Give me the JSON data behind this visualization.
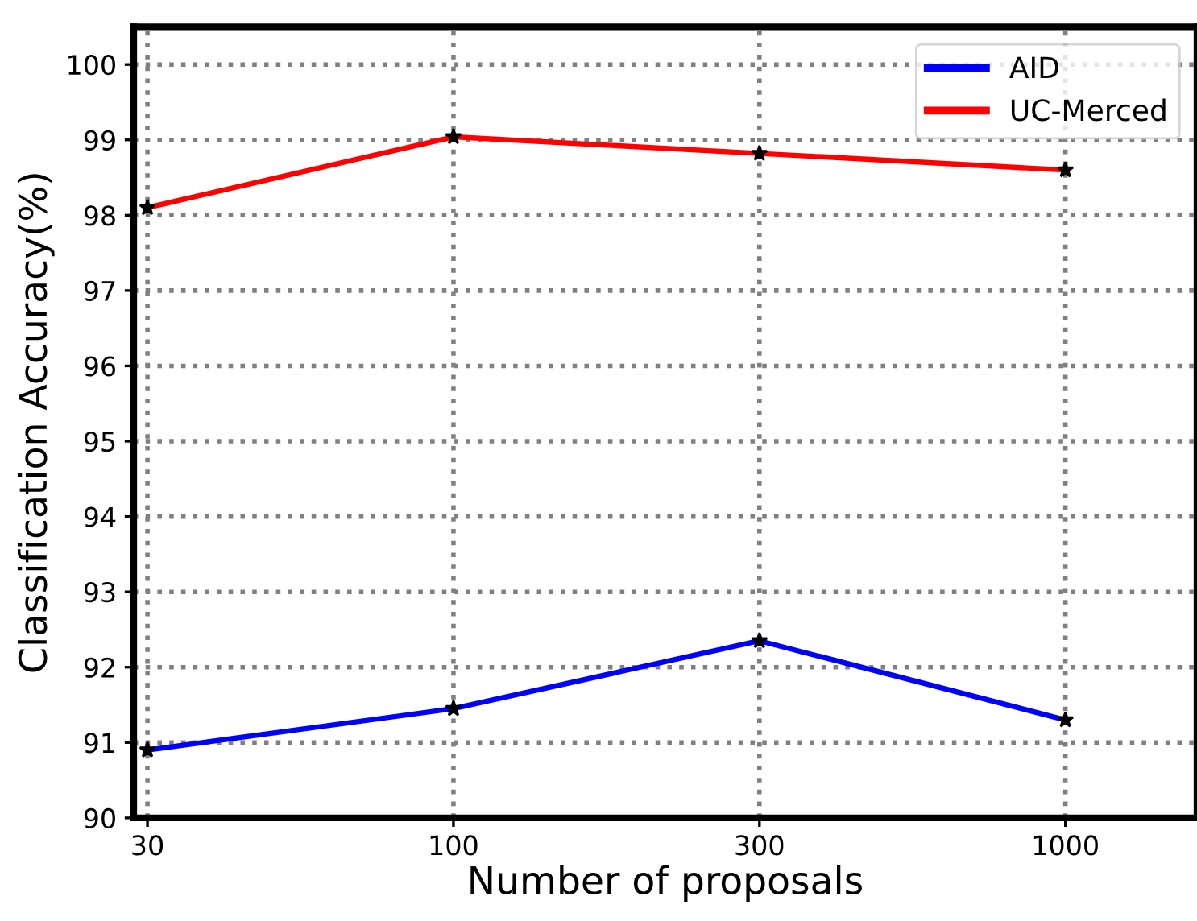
{
  "chart_data": {
    "type": "line",
    "xlabel": "Number of proposals",
    "ylabel": "Classification Accuracy(%)",
    "categories": [
      "30",
      "100",
      "300",
      "1000"
    ],
    "ylim": [
      90,
      100.5
    ],
    "yticks": [
      90,
      91,
      92,
      93,
      94,
      95,
      96,
      97,
      98,
      99,
      100
    ],
    "series": [
      {
        "name": "AID",
        "color": "#0000ff",
        "values": [
          90.9,
          91.45,
          92.35,
          91.3
        ]
      },
      {
        "name": "UC-Merced",
        "color": "#ff0000",
        "values": [
          98.1,
          99.04,
          98.82,
          98.6
        ]
      }
    ],
    "marker": "star",
    "line_style": "solid",
    "grid": true,
    "legend": "top right"
  }
}
